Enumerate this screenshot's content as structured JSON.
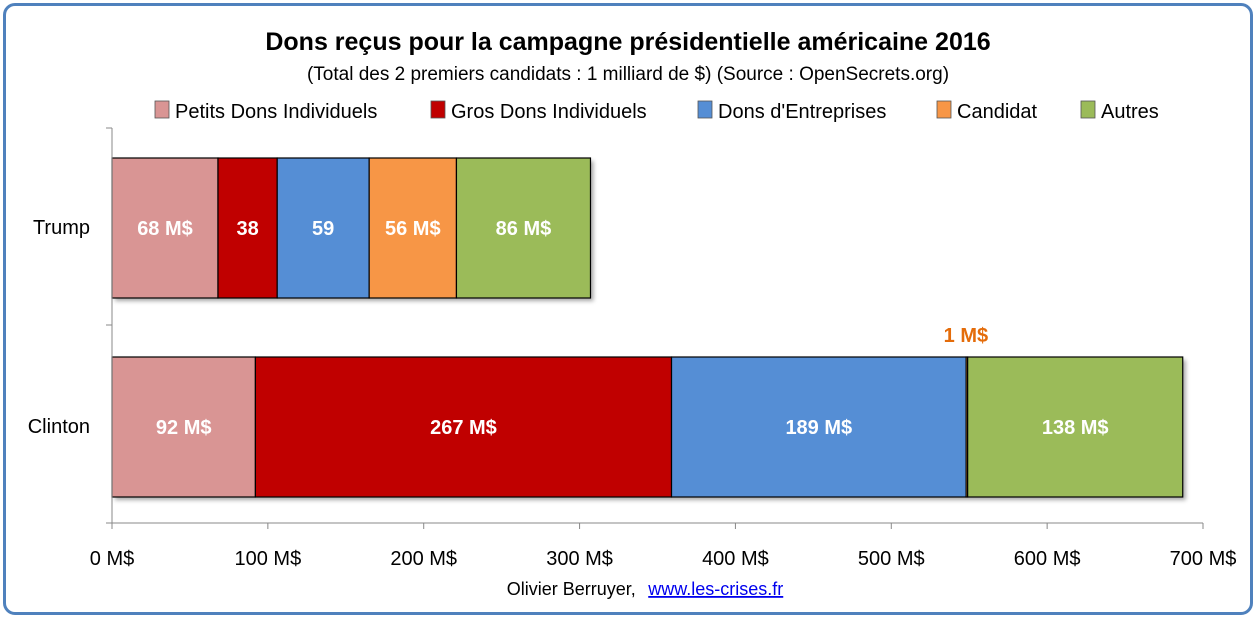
{
  "chart_data": {
    "type": "bar",
    "orientation": "horizontal",
    "stacked": true,
    "title": "Dons reçus pour la campagne présidentielle américaine 2016",
    "subtitle": "(Total des 2 premiers candidats : 1 milliard de $) (Source : OpenSecrets.org)",
    "categories": [
      "Trump",
      "Clinton"
    ],
    "series": [
      {
        "name": "Petits Dons Individuels",
        "color": "#d99594",
        "values": [
          68,
          92
        ],
        "labels": [
          "68 M$",
          "92 M$"
        ]
      },
      {
        "name": "Gros Dons Individuels",
        "color": "#c00000",
        "values": [
          38,
          267
        ],
        "labels": [
          "38",
          "267 M$"
        ]
      },
      {
        "name": "Dons d'Entreprises",
        "color": "#558ed5",
        "values": [
          59,
          189
        ],
        "labels": [
          "59",
          "189 M$"
        ]
      },
      {
        "name": "Candidat",
        "color": "#f79646",
        "values": [
          56,
          1
        ],
        "labels": [
          "56 M$",
          ""
        ]
      },
      {
        "name": "Autres",
        "color": "#9bbb59",
        "values": [
          86,
          138
        ],
        "labels": [
          "86 M$",
          "138 M$"
        ]
      }
    ],
    "annotation": {
      "text": "1 M$",
      "color": "#e46c0a"
    },
    "xlim": [
      0,
      700
    ],
    "xticks": [
      "0 M$",
      "100 M$",
      "200 M$",
      "300 M$",
      "400 M$",
      "500 M$",
      "600 M$",
      "700 M$"
    ],
    "legend": "top",
    "grid": false
  },
  "credit": {
    "author": "Olivier Berruyer,",
    "link": "www.les-crises.fr"
  },
  "frame_color": "#4f81bd"
}
